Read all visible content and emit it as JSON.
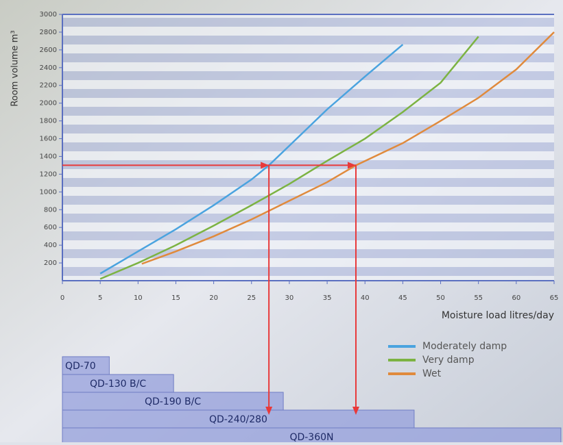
{
  "chart_data": {
    "type": "line",
    "ylabel": "Room volume m³",
    "xlabel": "Moisture load litres/day",
    "xlim": [
      0,
      65
    ],
    "xticks": [
      0,
      5,
      10,
      15,
      20,
      25,
      30,
      35,
      40,
      45,
      50,
      55,
      60,
      65
    ],
    "ylim": [
      0,
      3000
    ],
    "yticks": [
      200,
      400,
      600,
      800,
      1000,
      1200,
      1400,
      1600,
      1800,
      2000,
      2200,
      2400,
      2600,
      2800,
      3000
    ],
    "legend": "bottom-right",
    "series": [
      {
        "name": "Moderately damp",
        "color": "#4aa3df",
        "x": [
          5,
          10,
          15,
          20,
          25,
          27.3,
          30,
          35,
          40,
          45
        ],
        "values": [
          80,
          330,
          580,
          850,
          1140,
          1300,
          1520,
          1930,
          2300,
          2660
        ]
      },
      {
        "name": "Very damp",
        "color": "#7cb342",
        "x": [
          5,
          10,
          15,
          20,
          25,
          30,
          35,
          40,
          45,
          50,
          55
        ],
        "values": [
          20,
          200,
          400,
          620,
          850,
          1090,
          1350,
          1600,
          1900,
          2230,
          2750
        ]
      },
      {
        "name": "Wet",
        "color": "#e08a3c",
        "x": [
          10.5,
          15,
          20,
          25,
          30,
          35,
          38.8,
          45,
          50,
          55,
          60,
          65
        ],
        "values": [
          190,
          330,
          500,
          690,
          900,
          1110,
          1300,
          1550,
          1800,
          2060,
          2380,
          2800
        ]
      }
    ],
    "markers": {
      "color": "#e8393a",
      "y": 1300,
      "x": [
        27.3,
        38.8
      ]
    },
    "product_ranges": [
      {
        "label": "QD-70",
        "max": 6.2
      },
      {
        "label": "QD-130 B/C",
        "max": 14.7
      },
      {
        "label": "QD-190 B/C",
        "max": 29.2
      },
      {
        "label": "QD-240/280",
        "max": 46.5
      },
      {
        "label": "QD-360N",
        "max": 65.9
      }
    ]
  }
}
